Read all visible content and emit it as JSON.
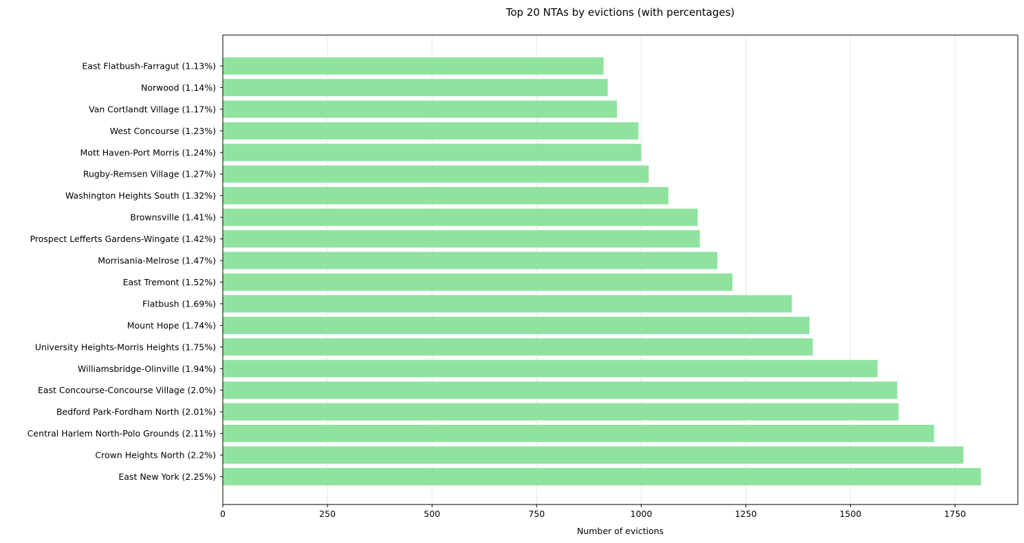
{
  "chart_data": {
    "type": "bar",
    "orientation": "horizontal",
    "title": "Top 20 NTAs by evictions (with percentages)",
    "xlabel": "Number of evictions",
    "ylabel": "",
    "xlim": [
      0,
      1900
    ],
    "xticks": [
      0,
      250,
      500,
      750,
      1000,
      1250,
      1500,
      1750
    ],
    "grid": "x",
    "bar_color": "#8fe39f",
    "categories": [
      "East New York (2.25%)",
      "Crown Heights North (2.2%)",
      "Central Harlem North-Polo Grounds (2.11%)",
      "Bedford Park-Fordham North (2.01%)",
      "East Concourse-Concourse Village (2.0%)",
      "Williamsbridge-Olinville (1.94%)",
      "University Heights-Morris Heights (1.75%)",
      "Mount Hope (1.74%)",
      "Flatbush (1.69%)",
      "East Tremont (1.52%)",
      "Morrisania-Melrose (1.47%)",
      "Prospect Lefferts Gardens-Wingate (1.42%)",
      "Brownsville (1.41%)",
      "Washington Heights South (1.32%)",
      "Rugby-Remsen Village (1.27%)",
      "Mott Haven-Port Morris (1.24%)",
      "West Concourse (1.23%)",
      "Van Cortlandt Village (1.17%)",
      "Norwood (1.14%)",
      "East Flatbush-Farragut (1.13%)"
    ],
    "values": [
      1812,
      1770,
      1700,
      1615,
      1612,
      1565,
      1410,
      1402,
      1360,
      1218,
      1182,
      1140,
      1135,
      1065,
      1018,
      1000,
      993,
      942,
      920,
      910
    ]
  }
}
